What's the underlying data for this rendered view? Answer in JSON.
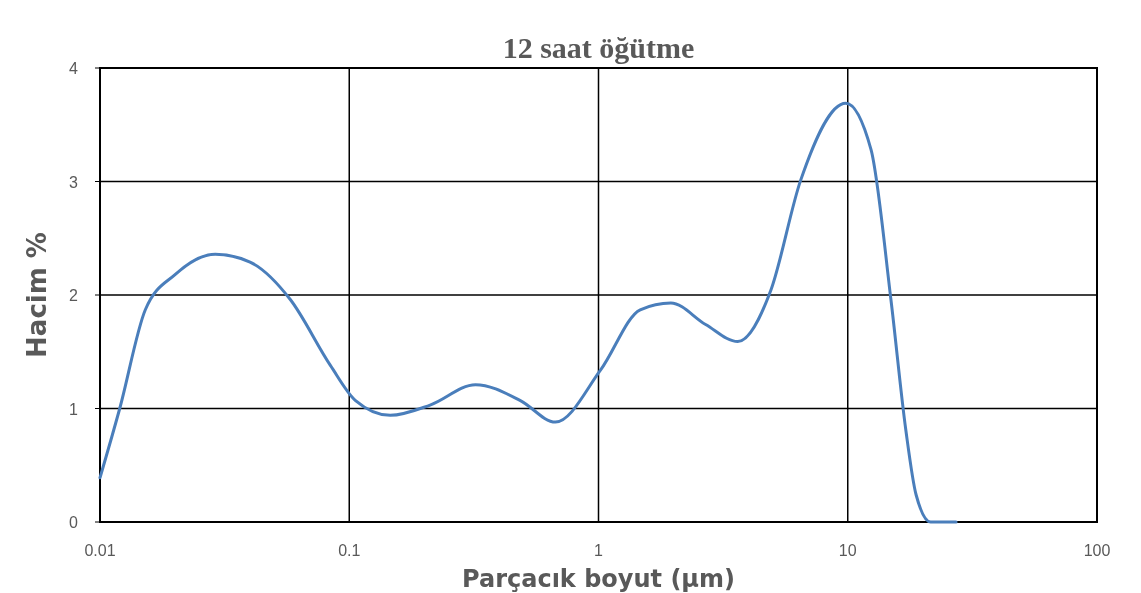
{
  "chart_data": {
    "type": "line",
    "title": "12 saat öğütme",
    "xlabel": "Parçacık boyut (µm)",
    "ylabel": "Hacim %",
    "log": "x",
    "grid": true,
    "marker": "none",
    "line_style": "solid",
    "xlim": [
      0.01,
      100
    ],
    "xticks": [
      0.01,
      0.1,
      1,
      10,
      100
    ],
    "ylim": [
      0,
      4
    ],
    "yticks": [
      0,
      1,
      2,
      3,
      4
    ],
    "series": [
      {
        "color": "#4a7ebb",
        "x": [
          0.01,
          0.012,
          0.0152,
          0.02,
          0.029,
          0.04,
          0.058,
          0.084,
          0.106,
          0.146,
          0.211,
          0.321,
          0.486,
          0.672,
          1.02,
          1.47,
          1.95,
          2.69,
          3.62,
          4.91,
          6.47,
          9.82,
          12.4,
          14.9,
          17.1,
          18.8,
          21.5,
          27.2
        ],
        "values": [
          0.39,
          1.0,
          1.87,
          2.18,
          2.36,
          2.29,
          1.96,
          1.38,
          1.07,
          0.94,
          1.03,
          1.21,
          1.07,
          0.88,
          1.34,
          1.87,
          1.93,
          1.74,
          1.59,
          2.04,
          3.01,
          3.69,
          3.28,
          1.96,
          0.81,
          0.24,
          0,
          0
        ]
      }
    ]
  }
}
